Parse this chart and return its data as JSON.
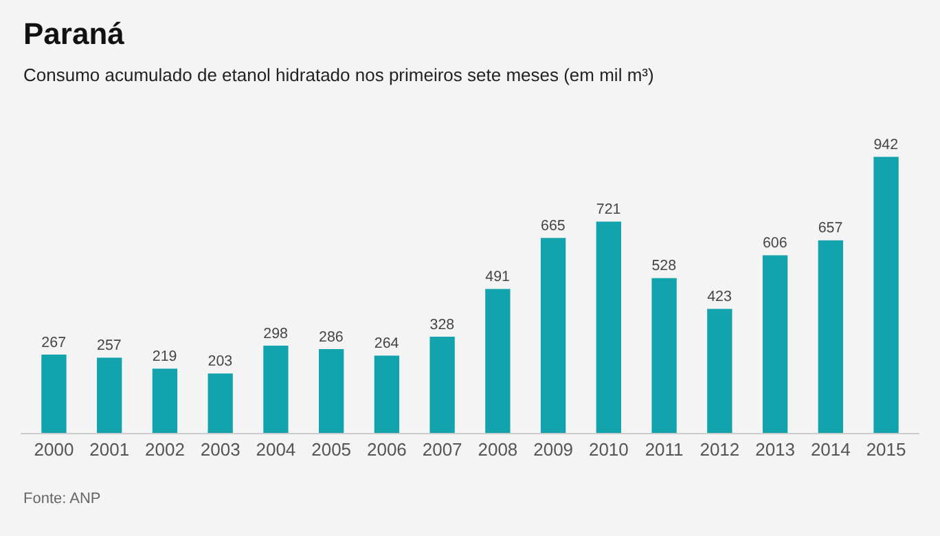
{
  "chart_data": {
    "type": "bar",
    "title": "Paraná",
    "subtitle": "Consumo acumulado de etanol hidratado nos primeiros sete meses (em mil m³)",
    "categories": [
      "2000",
      "2001",
      "2002",
      "2003",
      "2004",
      "2005",
      "2006",
      "2007",
      "2008",
      "2009",
      "2010",
      "2011",
      "2012",
      "2013",
      "2014",
      "2015"
    ],
    "values": [
      267,
      257,
      219,
      203,
      298,
      286,
      264,
      328,
      491,
      665,
      721,
      528,
      423,
      606,
      657,
      942
    ],
    "color": "#13a3ad",
    "data_labels": true,
    "grid": false,
    "legend": false,
    "annotations": [
      "Fonte: ANP"
    ]
  }
}
